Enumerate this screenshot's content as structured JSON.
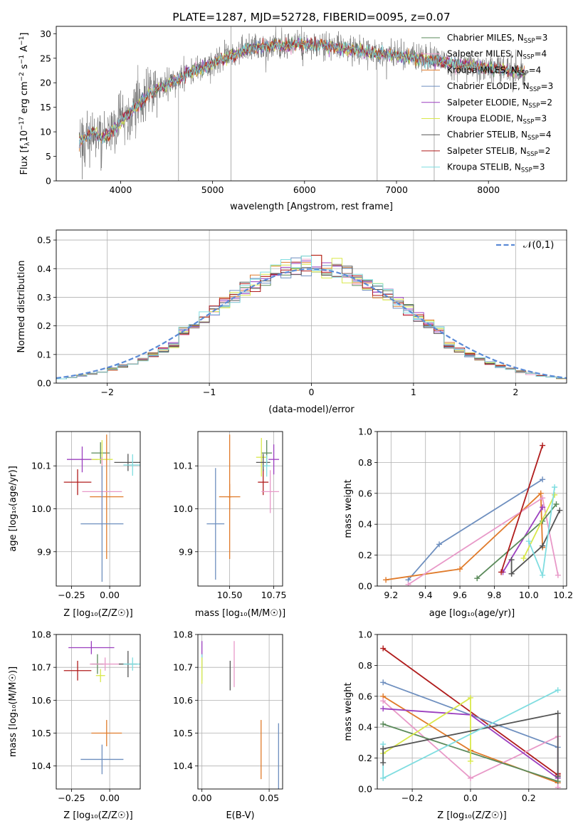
{
  "chart_data": [
    {
      "id": "spectrum",
      "type": "line",
      "title": "PLATE=1287, MJD=52728, FIBERID=0095, z=0.07",
      "xlabel": "wavelength [Angstrom, rest frame]",
      "ylabel_parts": [
        "Flux [f",
        "λ",
        "10",
        "−17",
        " erg cm",
        "−2",
        " s",
        "−1",
        " A",
        "−1",
        "]"
      ],
      "xlim": [
        3300,
        8850
      ],
      "ylim": [
        0,
        31.5
      ],
      "xticks": [
        4000,
        5000,
        6000,
        7000,
        8000
      ],
      "yticks": [
        0,
        5,
        10,
        15,
        20,
        25,
        30
      ],
      "grid": false,
      "legend_position": "top-right",
      "legend": [
        {
          "pre": "Chabrier MILES, N",
          "sub": "SSP",
          "post": "=3",
          "color": "#5a8a5a"
        },
        {
          "pre": "Salpeter MILES, N",
          "sub": "SSP",
          "post": "=4",
          "color": "#e899c8"
        },
        {
          "pre": "Kroupa MILES, N",
          "sub": "SSP",
          "post": "=4",
          "color": "#e07b2b"
        },
        {
          "pre": "Chabrier ELODIE, N",
          "sub": "SSP",
          "post": "=3",
          "color": "#6e8fbf"
        },
        {
          "pre": "Salpeter ELODIE, N",
          "sub": "SSP",
          "post": "=2",
          "color": "#9b3fbf"
        },
        {
          "pre": "Kroupa ELODIE, N",
          "sub": "SSP",
          "post": "=3",
          "color": "#d9e84a"
        },
        {
          "pre": "Chabrier STELIB, N",
          "sub": "SSP",
          "post": "=4",
          "color": "#555555"
        },
        {
          "pre": "Salpeter STELIB, N",
          "sub": "SSP",
          "post": "=2",
          "color": "#b01c1c"
        },
        {
          "pre": "Kroupa STELIB, N",
          "sub": "SSP",
          "post": "=3",
          "color": "#7fdde0"
        }
      ],
      "continuum": {
        "x": [
          3550,
          3700,
          3800,
          3900,
          4000,
          4100,
          4200,
          4300,
          4400,
          4500,
          4600,
          4700,
          4800,
          4900,
          5000,
          5200,
          5400,
          5600,
          5800,
          6000,
          6200,
          6400,
          6600,
          6800,
          7000,
          7200,
          7400,
          7600,
          7800,
          8000,
          8200,
          8400
        ],
        "y": [
          8,
          10,
          8.5,
          10,
          12,
          14,
          15.5,
          17.5,
          19,
          19.5,
          20.5,
          21.5,
          22.5,
          23,
          24,
          25.5,
          27,
          27.5,
          27.5,
          28,
          27.5,
          27,
          26.5,
          26,
          25.5,
          25,
          24.5,
          24,
          23.5,
          23,
          22.5,
          22
        ]
      }
    },
    {
      "id": "residual_hist",
      "type": "histogram",
      "xlabel": "(data-model)/error",
      "ylabel": "Normed distribution",
      "xlim": [
        -2.5,
        2.5
      ],
      "ylim": [
        0,
        0.535
      ],
      "xticks": [
        -2,
        -1,
        0,
        1,
        2
      ],
      "xtick_labels": [
        "−2",
        "−1",
        "0",
        "1",
        "2"
      ],
      "yticks": [
        0.0,
        0.1,
        0.2,
        0.3,
        0.4,
        0.5
      ],
      "ytick_labels": [
        "0.0",
        "0.1",
        "0.2",
        "0.3",
        "0.4",
        "0.5"
      ],
      "grid": true,
      "legend_position": "top-right",
      "reference_label": "𝒩(0,1)",
      "reference_color": "#5b8bd6",
      "bins": 50,
      "series_colors": [
        "#5a8a5a",
        "#e899c8",
        "#e07b2b",
        "#6e8fbf",
        "#9b3fbf",
        "#d9e84a",
        "#555555",
        "#b01c1c",
        "#7fdde0"
      ]
    },
    {
      "id": "age_vs_Z",
      "type": "errorbar",
      "xlabel": "Z [log₁₀(Z/Z☉)]",
      "ylabel": "age  [log₁₀(age/yr)]",
      "xlim": [
        -0.35,
        0.2
      ],
      "ylim": [
        9.82,
        10.18
      ],
      "xticks": [
        -0.25,
        0.0
      ],
      "xtick_labels": [
        "−0.25",
        "0.00"
      ],
      "yticks": [
        9.9,
        10.0,
        10.1
      ],
      "ytick_labels": [
        "9.9",
        "10.0",
        "10.1"
      ],
      "grid": true,
      "points": [
        {
          "x": -0.21,
          "y": 10.062,
          "xerr": 0.09,
          "yerr": 0.03,
          "color": "#b01c1c"
        },
        {
          "x": -0.18,
          "y": 10.115,
          "xerr": 0.1,
          "yerr": 0.03,
          "color": "#9b3fbf"
        },
        {
          "x": -0.06,
          "y": 10.13,
          "xerr": 0.06,
          "yerr": 0.025,
          "color": "#5a8a5a"
        },
        {
          "x": -0.05,
          "y": 10.115,
          "xerr": 0.07,
          "yerr": 0.045,
          "color": "#d9e84a"
        },
        {
          "x": -0.02,
          "y": 10.028,
          "xerr": 0.11,
          "yerr": 0.145,
          "color": "#e07b2b"
        },
        {
          "x": -0.05,
          "y": 10.04,
          "xerr": 0.13,
          "yerr": 0.08,
          "color": "#e899c8"
        },
        {
          "x": -0.05,
          "y": 9.965,
          "xerr": 0.14,
          "yerr": 0.135,
          "color": "#6e8fbf"
        },
        {
          "x": 0.12,
          "y": 10.108,
          "xerr": 0.09,
          "yerr": 0.02,
          "color": "#555555"
        },
        {
          "x": 0.15,
          "y": 10.102,
          "xerr": 0.06,
          "yerr": 0.025,
          "color": "#7fdde0"
        }
      ]
    },
    {
      "id": "age_vs_mass",
      "type": "errorbar",
      "xlabel": "mass [log₁₀(M/M☉)]",
      "ylabel": "",
      "xlim": [
        10.32,
        10.8
      ],
      "ylim": [
        9.82,
        10.18
      ],
      "xticks": [
        10.5,
        10.75
      ],
      "xtick_labels": [
        "10.50",
        "10.75"
      ],
      "yticks": [
        9.9,
        10.0,
        10.1
      ],
      "ytick_labels": [
        "9.9",
        "10.0",
        "10.1"
      ],
      "grid": true,
      "points": [
        {
          "x": 10.69,
          "y": 10.062,
          "xerr": 0.03,
          "yerr": 0.03,
          "color": "#b01c1c"
        },
        {
          "x": 10.75,
          "y": 10.115,
          "xerr": 0.03,
          "yerr": 0.035,
          "color": "#9b3fbf"
        },
        {
          "x": 10.71,
          "y": 10.13,
          "xerr": 0.03,
          "yerr": 0.03,
          "color": "#5a8a5a"
        },
        {
          "x": 10.68,
          "y": 10.12,
          "xerr": 0.03,
          "yerr": 0.045,
          "color": "#d9e84a"
        },
        {
          "x": 10.5,
          "y": 10.028,
          "xerr": 0.06,
          "yerr": 0.03,
          "color": "#e07b2b"
        },
        {
          "x": 10.5,
          "y": 10.028,
          "xerr": 0.01,
          "yerr": 0.145,
          "color": "#e07b2b"
        },
        {
          "x": 10.73,
          "y": 10.04,
          "xerr": 0.05,
          "yerr": 0.05,
          "color": "#e899c8"
        },
        {
          "x": 10.42,
          "y": 9.965,
          "xerr": 0.05,
          "yerr": 0.13,
          "color": "#6e8fbf"
        },
        {
          "x": 10.69,
          "y": 10.108,
          "xerr": 0.04,
          "yerr": 0.02,
          "color": "#555555"
        },
        {
          "x": 10.71,
          "y": 10.1,
          "xerr": 0.02,
          "yerr": 0.025,
          "color": "#7fdde0"
        }
      ]
    },
    {
      "id": "weight_vs_age",
      "type": "line",
      "xlabel": "age  [log₁₀(age/yr)]",
      "ylabel": "mass weight",
      "xlim": [
        9.12,
        10.22
      ],
      "ylim": [
        0,
        1.0
      ],
      "xticks": [
        9.2,
        9.4,
        9.6,
        9.8,
        10.0,
        10.2
      ],
      "xtick_labels": [
        "9.2",
        "9.4",
        "9.6",
        "9.8",
        "10.0",
        "10.2"
      ],
      "yticks": [
        0.0,
        0.2,
        0.4,
        0.6,
        0.8,
        1.0
      ],
      "ytick_labels": [
        "0.0",
        "0.2",
        "0.4",
        "0.6",
        "0.8",
        "1.0"
      ],
      "grid": true,
      "series": [
        {
          "color": "#6e8fbf",
          "x": [
            9.3,
            9.48,
            10.08
          ],
          "y": [
            0.04,
            0.27,
            0.69
          ]
        },
        {
          "color": "#e07b2b",
          "x": [
            9.17,
            9.6,
            10.07,
            10.08
          ],
          "y": [
            0.04,
            0.11,
            0.6,
            0.25
          ]
        },
        {
          "color": "#e899c8",
          "x": [
            9.3,
            10.08,
            10.17
          ],
          "y": [
            0.01,
            0.57,
            0.07
          ]
        },
        {
          "color": "#9b3fbf",
          "x": [
            9.85,
            10.08
          ],
          "y": [
            0.09,
            0.51
          ]
        },
        {
          "color": "#5a8a5a",
          "x": [
            9.7,
            10.08,
            10.16
          ],
          "y": [
            0.05,
            0.42,
            0.53
          ]
        },
        {
          "color": "#d9e84a",
          "x": [
            9.97,
            10.15
          ],
          "y": [
            0.18,
            0.59
          ]
        },
        {
          "color": "#555555",
          "x": [
            9.9,
            10.08,
            10.18
          ],
          "y": [
            0.08,
            0.26,
            0.49
          ]
        },
        {
          "color": "#b01c1c",
          "x": [
            9.84,
            10.08
          ],
          "y": [
            0.09,
            0.91
          ]
        },
        {
          "color": "#7fdde0",
          "x": [
            10.0,
            10.08,
            10.15
          ],
          "y": [
            0.29,
            0.07,
            0.64
          ]
        },
        {
          "color": "#555555",
          "x": [
            9.9,
            9.9
          ],
          "y": [
            0.08,
            0.17
          ]
        }
      ]
    },
    {
      "id": "mass_vs_Z",
      "type": "errorbar",
      "xlabel": "Z [log₁₀(Z/Z☉)]",
      "ylabel": "mass [log₁₀(M/M☉)]",
      "xlim": [
        -0.35,
        0.2
      ],
      "ylim": [
        10.33,
        10.8
      ],
      "xticks": [
        -0.25,
        0.0
      ],
      "xtick_labels": [
        "−0.25",
        "0.00"
      ],
      "yticks": [
        10.4,
        10.5,
        10.6,
        10.7,
        10.8
      ],
      "ytick_labels": [
        "10.4",
        "10.5",
        "10.6",
        "10.7",
        "10.8"
      ],
      "grid": true,
      "points": [
        {
          "x": -0.21,
          "y": 10.69,
          "xerr": 0.09,
          "yerr": 0.03,
          "color": "#b01c1c"
        },
        {
          "x": -0.12,
          "y": 10.76,
          "xerr": 0.15,
          "yerr": 0.02,
          "color": "#9b3fbf"
        },
        {
          "x": -0.08,
          "y": 10.71,
          "xerr": 0.04,
          "yerr": 0.03,
          "color": "#5a8a5a"
        },
        {
          "x": -0.06,
          "y": 10.675,
          "xerr": 0.03,
          "yerr": 0.02,
          "color": "#d9e84a"
        },
        {
          "x": -0.02,
          "y": 10.5,
          "xerr": 0.1,
          "yerr": 0.04,
          "color": "#e07b2b"
        },
        {
          "x": -0.03,
          "y": 10.71,
          "xerr": 0.1,
          "yerr": 0.02,
          "color": "#e899c8"
        },
        {
          "x": -0.05,
          "y": 10.42,
          "xerr": 0.14,
          "yerr": 0.045,
          "color": "#6e8fbf"
        },
        {
          "x": 0.12,
          "y": 10.71,
          "xerr": 0.06,
          "yerr": 0.04,
          "color": "#555555"
        },
        {
          "x": 0.15,
          "y": 10.71,
          "xerr": 0.06,
          "yerr": 0.02,
          "color": "#7fdde0"
        }
      ]
    },
    {
      "id": "mass_vs_ebv",
      "type": "errorbar",
      "xlabel": "E(B-V)",
      "ylabel": "",
      "xlim": [
        -0.003,
        0.06
      ],
      "ylim": [
        10.33,
        10.8
      ],
      "xticks": [
        0.0,
        0.05
      ],
      "xtick_labels": [
        "0.00",
        "0.05"
      ],
      "yticks": [
        10.4,
        10.5,
        10.6,
        10.7,
        10.8
      ],
      "ytick_labels": [
        "10.4",
        "10.5",
        "10.6",
        "10.7",
        "10.8"
      ],
      "grid": true,
      "points": [
        {
          "x": 0.0,
          "y": 10.74,
          "xerr": 0,
          "yerr": 0.04,
          "color": "#9b3fbf"
        },
        {
          "x": 0.0,
          "y": 10.7,
          "xerr": 0,
          "yerr": 0.04,
          "color": "#7fdde0"
        },
        {
          "x": 0.0,
          "y": 10.69,
          "xerr": 0,
          "yerr": 0.04,
          "color": "#d9e84a"
        },
        {
          "x": 0.021,
          "y": 10.675,
          "xerr": 0,
          "yerr": 0.045,
          "color": "#555555"
        },
        {
          "x": 0.024,
          "y": 10.71,
          "xerr": 0,
          "yerr": 0.07,
          "color": "#e899c8"
        },
        {
          "x": 0.044,
          "y": 10.45,
          "xerr": 0,
          "yerr": 0.09,
          "color": "#e07b2b"
        },
        {
          "x": 0.057,
          "y": 10.43,
          "xerr": 0,
          "yerr": 0.1,
          "color": "#6e8fbf"
        }
      ]
    },
    {
      "id": "weight_vs_Z",
      "type": "line",
      "xlabel": "Z [log₁₀(Z/Z☉)]",
      "ylabel": "mass weight",
      "xlim": [
        -0.32,
        0.33
      ],
      "ylim": [
        0,
        1.0
      ],
      "xticks": [
        -0.2,
        0.0,
        0.2
      ],
      "xtick_labels": [
        "−0.2",
        "0.0",
        "0.2"
      ],
      "yticks": [
        0.0,
        0.2,
        0.4,
        0.6,
        0.8,
        1.0
      ],
      "ytick_labels": [
        "0.0",
        "0.2",
        "0.4",
        "0.6",
        "0.8",
        "1.0"
      ],
      "grid": true,
      "series": [
        {
          "color": "#b01c1c",
          "x": [
            -0.3,
            0.3,
            0.3
          ],
          "y": [
            0.91,
            0.09,
            0.1
          ]
        },
        {
          "color": "#6e8fbf",
          "x": [
            -0.3,
            0.3,
            0.3
          ],
          "y": [
            0.69,
            0.27,
            0.04
          ]
        },
        {
          "color": "#e07b2b",
          "x": [
            -0.3,
            0.0,
            0.3
          ],
          "y": [
            0.6,
            0.25,
            0.04
          ]
        },
        {
          "color": "#e899c8",
          "x": [
            -0.3,
            0.0,
            0.3,
            0.3
          ],
          "y": [
            0.57,
            0.07,
            0.34,
            0.01
          ]
        },
        {
          "color": "#9b3fbf",
          "x": [
            -0.3,
            0.0,
            0.3
          ],
          "y": [
            0.52,
            0.48,
            0.07
          ]
        },
        {
          "color": "#5a8a5a",
          "x": [
            -0.3,
            0.3
          ],
          "y": [
            0.42,
            0.05
          ]
        },
        {
          "color": "#d9e84a",
          "x": [
            -0.3,
            0.0,
            0.0
          ],
          "y": [
            0.23,
            0.59,
            0.18
          ]
        },
        {
          "color": "#555555",
          "x": [
            -0.3,
            0.3,
            0.3
          ],
          "y": [
            0.26,
            0.49,
            0.08
          ]
        },
        {
          "color": "#7fdde0",
          "x": [
            -0.3,
            0.3
          ],
          "y": [
            0.07,
            0.64
          ]
        },
        {
          "color": "#7fdde0",
          "x": [
            -0.3,
            -0.3
          ],
          "y": [
            0.07,
            0.29
          ]
        },
        {
          "color": "#555555",
          "x": [
            -0.3,
            -0.3
          ],
          "y": [
            0.17,
            0.26
          ]
        }
      ]
    }
  ]
}
